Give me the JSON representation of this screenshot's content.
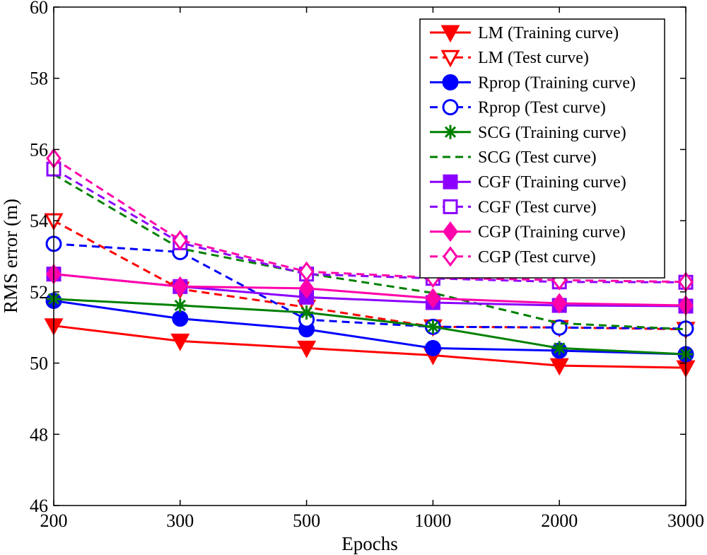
{
  "chart_data": {
    "type": "line",
    "title": "",
    "xlabel": "Epochs",
    "ylabel": "RMS error (m)",
    "categories": [
      "200",
      "300",
      "500",
      "1000",
      "2000",
      "3000"
    ],
    "yticks": [
      "46",
      "48",
      "50",
      "52",
      "54",
      "56",
      "58",
      "60"
    ],
    "ylim": [
      46,
      60
    ],
    "grid": false,
    "legend_position": "top-right",
    "series": [
      {
        "name": "LM (Training curve)",
        "color": "#ff0000",
        "dash": "solid",
        "marker": "triangle-down",
        "filled": true,
        "values": [
          51.05,
          50.62,
          50.42,
          50.22,
          49.93,
          49.87
        ]
      },
      {
        "name": "LM (Test curve)",
        "color": "#ff0000",
        "dash": "dashed",
        "marker": "triangle-down",
        "filled": false,
        "values": [
          54.0,
          52.08,
          51.57,
          51.02,
          51.0,
          50.95
        ]
      },
      {
        "name": "Rprop (Training curve)",
        "color": "#0000ff",
        "dash": "solid",
        "marker": "circle",
        "filled": true,
        "values": [
          51.75,
          51.25,
          50.95,
          50.42,
          50.35,
          50.25
        ]
      },
      {
        "name": "Rprop (Test curve)",
        "color": "#0000ff",
        "dash": "dashed",
        "marker": "circle",
        "filled": false,
        "values": [
          53.35,
          53.12,
          51.22,
          51.02,
          51.0,
          50.97
        ]
      },
      {
        "name": "SCG (Training curve)",
        "color": "#008000",
        "dash": "solid",
        "marker": "asterisk",
        "filled": false,
        "values": [
          51.8,
          51.62,
          51.42,
          51.02,
          50.42,
          50.25
        ]
      },
      {
        "name": "SCG (Test curve)",
        "color": "#008000",
        "dash": "dashed",
        "marker": "none",
        "filled": false,
        "values": [
          55.3,
          53.22,
          52.52,
          51.97,
          51.12,
          50.95
        ]
      },
      {
        "name": "CGF (Training curve)",
        "color": "#8b00ff",
        "dash": "solid",
        "marker": "square",
        "filled": true,
        "values": [
          52.5,
          52.15,
          51.85,
          51.7,
          51.62,
          51.6
        ]
      },
      {
        "name": "CGF (Test curve)",
        "color": "#8b00ff",
        "dash": "dashed",
        "marker": "square",
        "filled": false,
        "values": [
          55.45,
          53.38,
          52.5,
          52.38,
          52.28,
          52.27
        ]
      },
      {
        "name": "CGP (Training curve)",
        "color": "#ff00aa",
        "dash": "solid",
        "marker": "diamond",
        "filled": true,
        "values": [
          52.5,
          52.15,
          52.1,
          51.82,
          51.68,
          51.62
        ]
      },
      {
        "name": "CGP (Test curve)",
        "color": "#ff00aa",
        "dash": "dashed",
        "marker": "diamond",
        "filled": false,
        "values": [
          55.75,
          53.45,
          52.57,
          52.4,
          52.33,
          52.28
        ]
      }
    ]
  }
}
